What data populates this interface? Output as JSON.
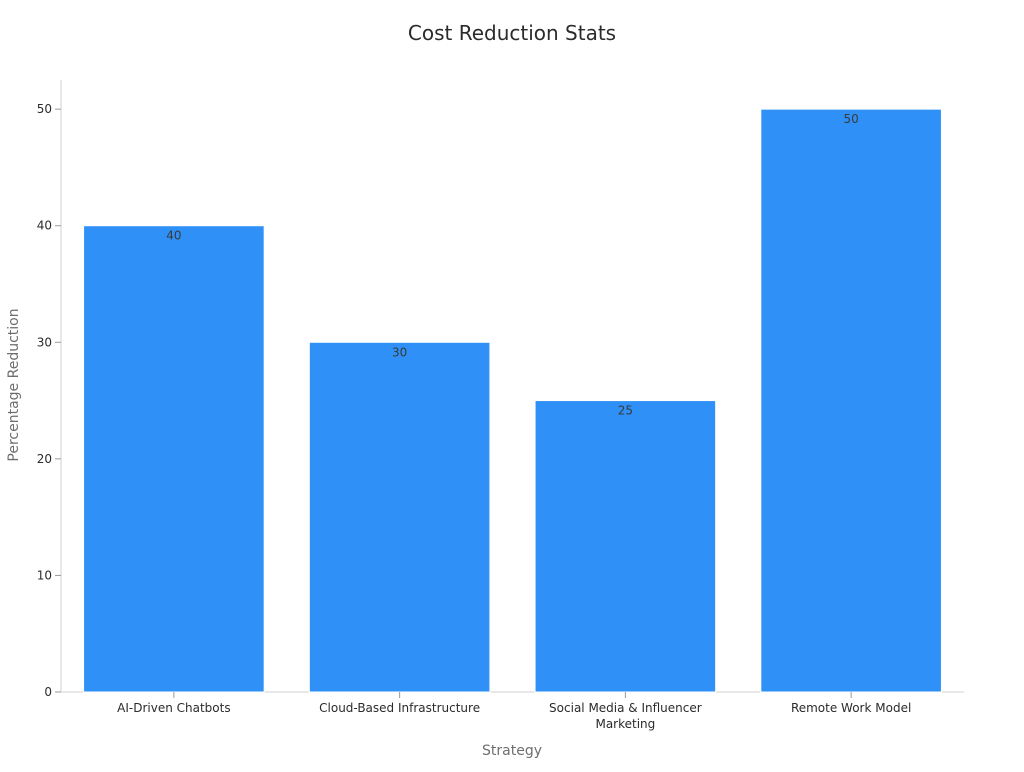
{
  "chart_data": {
    "type": "bar",
    "title": "Cost Reduction Stats",
    "xlabel": "Strategy",
    "ylabel": "Percentage Reduction",
    "categories": [
      [
        "AI-Driven Chatbots"
      ],
      [
        "Cloud-Based Infrastructure"
      ],
      [
        "Social Media & Influencer",
        "Marketing"
      ],
      [
        "Remote Work Model"
      ]
    ],
    "values": [
      40,
      30,
      25,
      50
    ],
    "ylim": [
      0,
      52.5
    ],
    "yticks": [
      0,
      10,
      20,
      30,
      40,
      50
    ],
    "grid": false,
    "legend": "none",
    "bar_color": "#2f91f7"
  }
}
